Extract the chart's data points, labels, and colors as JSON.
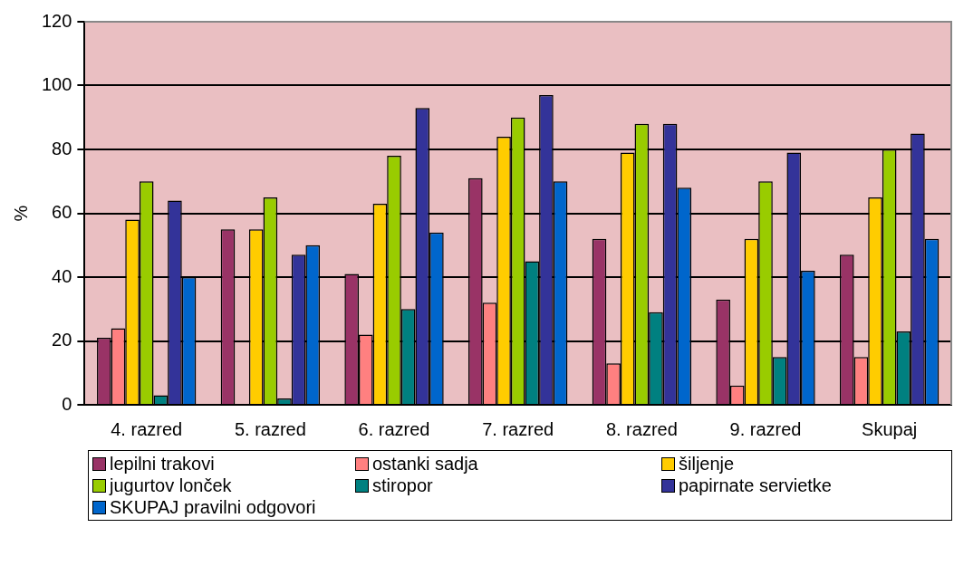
{
  "chart_data": {
    "type": "bar",
    "ylabel": "%",
    "categories": [
      "4. razred",
      "5. razred",
      "6. razred",
      "7. razred",
      "8. razred",
      "9. razred",
      "Skupaj"
    ],
    "series": [
      {
        "name": "lepilni trakovi",
        "color": "#993366",
        "values": [
          21,
          55,
          41,
          71,
          52,
          33,
          47
        ]
      },
      {
        "name": "ostanki sadja",
        "color": "#ff8080",
        "values": [
          24,
          null,
          22,
          32,
          13,
          6,
          15
        ]
      },
      {
        "name": "šiljenje",
        "color": "#ffcc00",
        "values": [
          58,
          55,
          63,
          84,
          79,
          52,
          65
        ]
      },
      {
        "name": "jugurtov lonček",
        "color": "#99cc00",
        "values": [
          70,
          65,
          78,
          90,
          88,
          70,
          80
        ]
      },
      {
        "name": "stiropor",
        "color": "#008080",
        "values": [
          3,
          2,
          30,
          45,
          29,
          15,
          23
        ]
      },
      {
        "name": "papirnate servietke",
        "color": "#333399",
        "values": [
          64,
          47,
          93,
          97,
          88,
          79,
          85
        ]
      },
      {
        "name": "SKUPAJ pravilni odgovori",
        "color": "#0066cc",
        "values": [
          40,
          50,
          54,
          70,
          68,
          42,
          52
        ]
      }
    ],
    "ylim": [
      0,
      120
    ],
    "yticks": [
      0,
      20,
      40,
      60,
      80,
      100,
      120
    ],
    "grid": "y",
    "legend": "bottom"
  }
}
